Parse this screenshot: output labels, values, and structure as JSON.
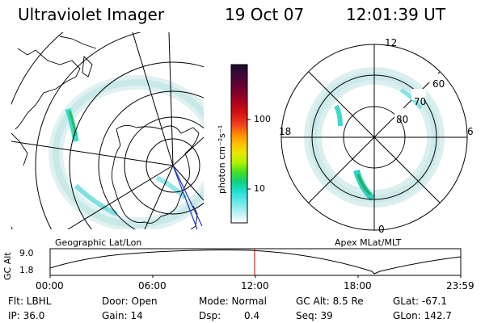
{
  "header": {
    "instrument": "Ultraviolet Imager",
    "date": "19 Oct 07",
    "time": "12:01:39 UT"
  },
  "colorbar": {
    "label": "photon cm⁻²s⁻¹",
    "ticks": [
      "100",
      "10"
    ],
    "colors": [
      "#1a0a2a",
      "#3a0a3a",
      "#6a0030",
      "#a00020",
      "#d01010",
      "#f04020",
      "#ff8a00",
      "#ffc000",
      "#e8e800",
      "#b0f000",
      "#40e020",
      "#10d080",
      "#20e0d0",
      "#60e8e8",
      "#a8f0f0",
      "#e0f8f8",
      "#ffffff"
    ]
  },
  "left_map": {
    "label": "Geographic Lat/Lon"
  },
  "right_map": {
    "label": "Apex MLat/MLT",
    "mlt_labels": {
      "top": "12",
      "left": "18",
      "right": "6",
      "bottom": "0"
    },
    "lat_labels": [
      "60",
      "70",
      "80"
    ]
  },
  "altitude_plot": {
    "ylabel": "GC Alt",
    "yticks": [
      "9.0",
      "1.8"
    ],
    "xticks": [
      "00:00",
      "06:00",
      "12:00",
      "18:00",
      "23:59"
    ],
    "marker_color": "#c00000"
  },
  "info": {
    "flt": "Flt: LBHL",
    "ip": "IP: 36.0",
    "door": "Door: Open",
    "gain": "Gain: 14",
    "mode": "Mode: Normal",
    "dsp_label": "Dsp:",
    "dsp_value": "0.4",
    "gcalt": "GC Alt: 8.5 Re",
    "seq": "Seq: 39",
    "glat": "GLat: -67.1",
    "glon": "GLon: 142.7"
  }
}
